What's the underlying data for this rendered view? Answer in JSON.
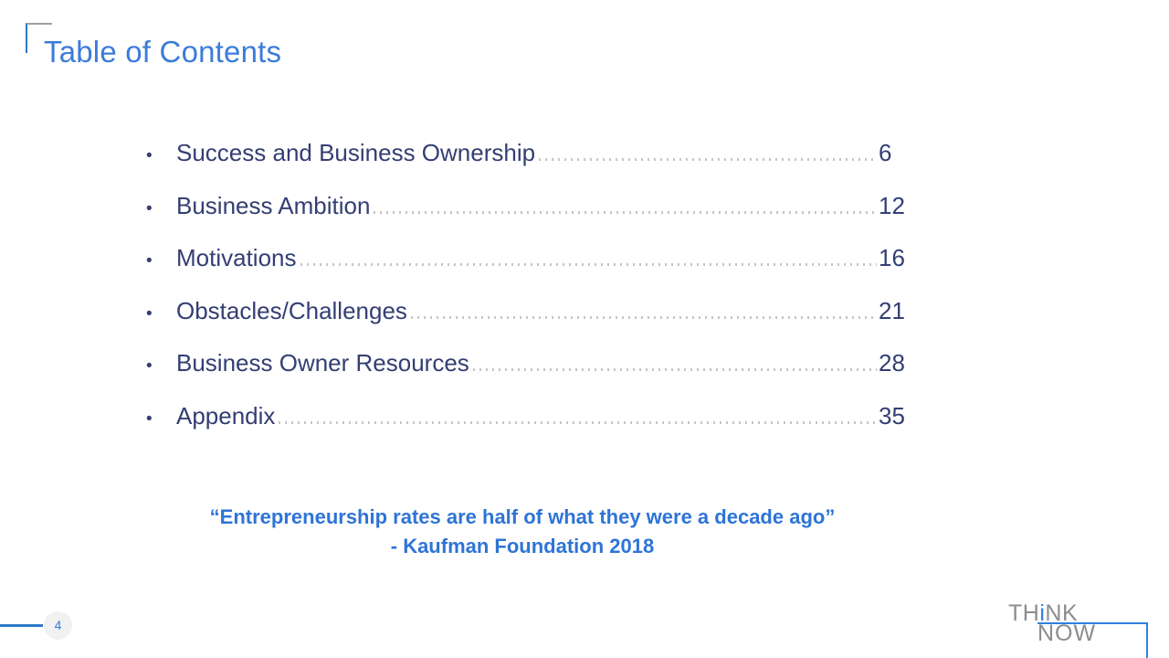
{
  "slide": {
    "title": "Table of Contents",
    "toc": [
      {
        "label": "Success and Business Ownership",
        "page": "6"
      },
      {
        "label": "Business Ambition",
        "page": "12"
      },
      {
        "label": "Motivations",
        "page": "16"
      },
      {
        "label": "Obstacles/Challenges",
        "page": "21"
      },
      {
        "label": "Business Owner Resources",
        "page": "28"
      },
      {
        "label": "Appendix",
        "page": "35"
      }
    ],
    "quote": {
      "line1": "“Entrepreneurship rates are half of what they were a decade ago”",
      "line2": "- Kaufman Foundation 2018"
    },
    "footer": {
      "page_number": "4"
    },
    "logo": {
      "think_pre": "TH",
      "think_i": "i",
      "think_post": "NK",
      "now": "NOW"
    },
    "colors": {
      "heading_blue": "#3B7CD9",
      "quote_blue": "#2E74D6",
      "list_navy": "#333E70",
      "leader_dot_gray": "#C4C4CC",
      "logo_gray": "#8C8C8C",
      "logo_line_blue": "#2F80DC",
      "footer_line_blue": "#2E79C7",
      "page_circle_fill": "#F1F1F2"
    }
  }
}
